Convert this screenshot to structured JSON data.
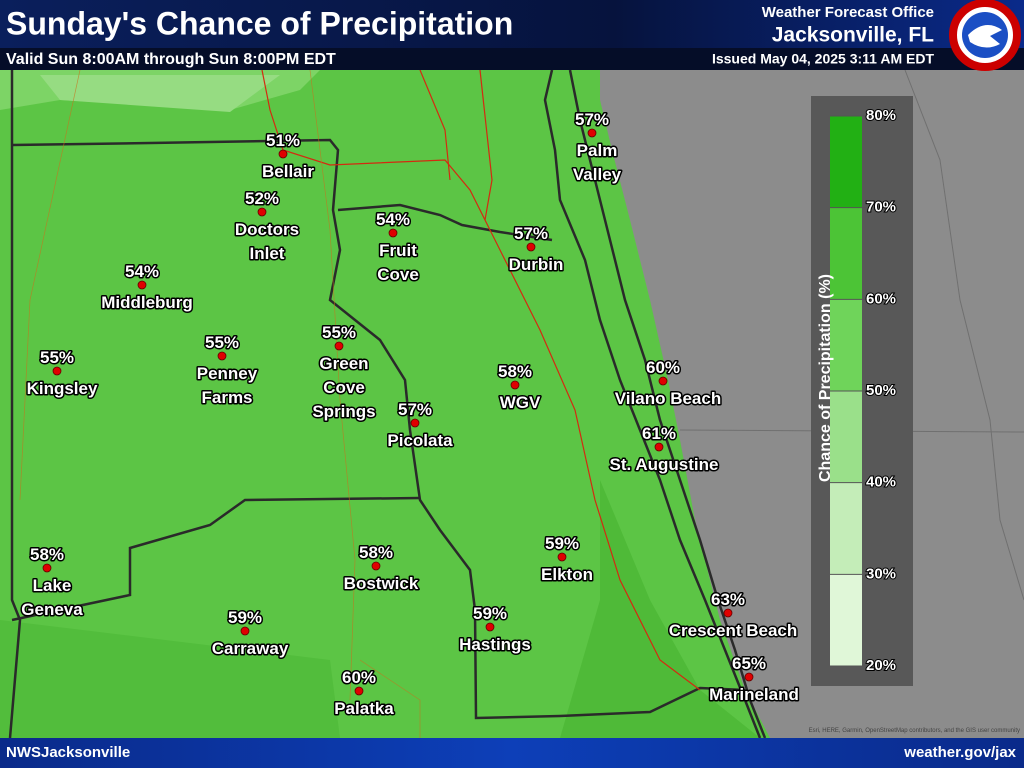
{
  "header": {
    "title": "Sunday's Chance of Precipitation",
    "subtitle": "Valid Sun 8:00AM through Sun 8:00PM EDT",
    "office_line1": "Weather Forecast Office",
    "office_line2": "Jacksonville, FL",
    "issued": "Issued May 04, 2025 3:11 AM EDT"
  },
  "legend": {
    "title": "Chance of Precipitation (%)",
    "ticks": [
      "80%",
      "70%",
      "60%",
      "50%",
      "40%",
      "30%",
      "20%"
    ]
  },
  "places": [
    {
      "label": "51%",
      "name": [
        "Bellair"
      ]
    },
    {
      "label": "52%",
      "name": [
        "Doctors",
        "Inlet"
      ]
    },
    {
      "label": "54%",
      "name": [
        "Fruit",
        "Cove"
      ]
    },
    {
      "label": "57%",
      "name": [
        "Durbin"
      ]
    },
    {
      "label": "57%",
      "name": [
        "Palm",
        "Valley"
      ]
    },
    {
      "label": "54%",
      "name": [
        "Middleburg"
      ]
    },
    {
      "label": "55%",
      "name": [
        "Kingsley"
      ]
    },
    {
      "label": "55%",
      "name": [
        "Penney",
        "Farms"
      ]
    },
    {
      "label": "55%",
      "name": [
        "Green",
        "Cove",
        "Springs"
      ]
    },
    {
      "label": "57%",
      "name": [
        "Picolata"
      ]
    },
    {
      "label": "58%",
      "name": [
        "WGV"
      ]
    },
    {
      "label": "60%",
      "name": [
        "Vilano Beach"
      ]
    },
    {
      "label": "61%",
      "name": [
        "St. Augustine"
      ]
    },
    {
      "label": "58%",
      "name": [
        "Lake",
        "Geneva"
      ]
    },
    {
      "label": "58%",
      "name": [
        "Bostwick"
      ]
    },
    {
      "label": "59%",
      "name": [
        "Elkton"
      ]
    },
    {
      "label": "59%",
      "name": [
        "Carraway"
      ]
    },
    {
      "label": "59%",
      "name": [
        "Hastings"
      ]
    },
    {
      "label": "63%",
      "name": [
        "Crescent Beach"
      ]
    },
    {
      "label": "65%",
      "name": [
        "Marineland"
      ]
    },
    {
      "label": "60%",
      "name": [
        "Palatka"
      ]
    }
  ],
  "footer": {
    "left": "NWSJacksonville",
    "right": "weather.gov/jax",
    "attribution": "Esri, HERE, Garmin, OpenStreetMap contributors, and the GIS user community"
  }
}
